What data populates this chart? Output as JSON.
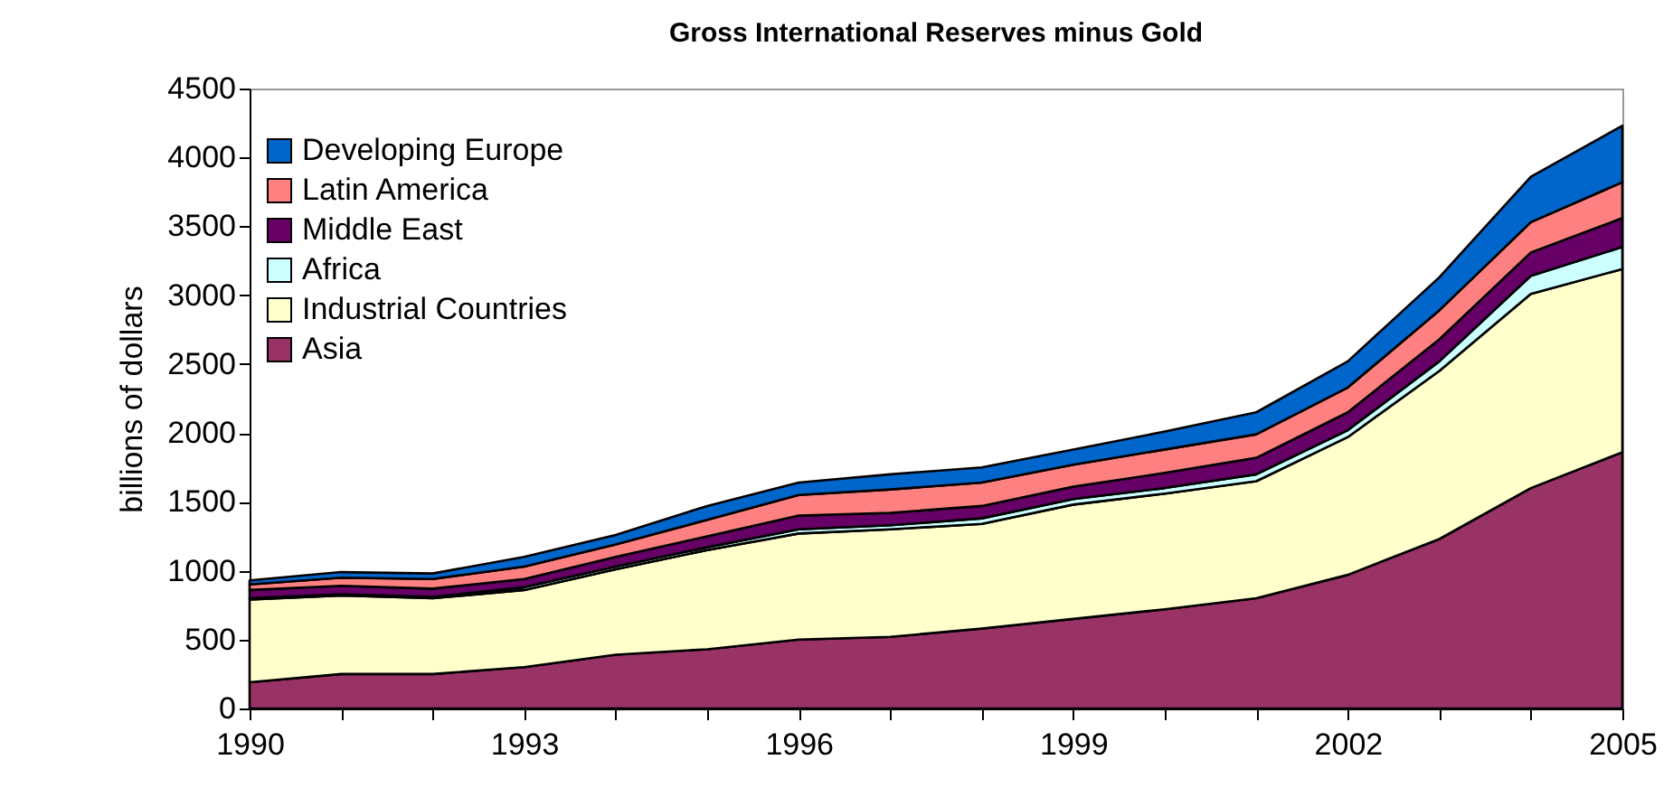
{
  "chart_data": {
    "type": "area",
    "title": "Gross International Reserves minus Gold",
    "ylabel": "billions of dollars",
    "stacked": true,
    "legend": "top left",
    "grid": false,
    "x": [
      1990,
      1991,
      1992,
      1993,
      1994,
      1995,
      1996,
      1997,
      1998,
      1999,
      2000,
      2001,
      2002,
      2003,
      2004,
      2005
    ],
    "xlim": [
      1990,
      2005
    ],
    "xticks": [
      1990,
      {
        "value": 1991,
        "label": null
      },
      {
        "value": 1992,
        "label": null
      },
      1993,
      {
        "value": 1994,
        "label": null
      },
      {
        "value": 1995,
        "label": null
      },
      1996,
      {
        "value": 1997,
        "label": null
      },
      {
        "value": 1998,
        "label": null
      },
      1999,
      {
        "value": 2000,
        "label": null
      },
      {
        "value": 2001,
        "label": null
      },
      2002,
      {
        "value": 2003,
        "label": null
      },
      {
        "value": 2004,
        "label": null
      },
      2005
    ],
    "ylim": [
      0,
      4500
    ],
    "yticks": [
      0,
      500,
      1000,
      1500,
      2000,
      2500,
      3000,
      3500,
      4000,
      4500
    ],
    "series": [
      {
        "name": "Asia",
        "color": "#993366",
        "values": [
          190,
          250,
          250,
          300,
          390,
          430,
          500,
          520,
          580,
          650,
          720,
          800,
          970,
          1230,
          1600,
          1860
        ]
      },
      {
        "name": "Industrial Countries",
        "color": "#ffffcc",
        "values": [
          600,
          570,
          550,
          560,
          620,
          720,
          770,
          780,
          760,
          830,
          840,
          850,
          1000,
          1220,
          1410,
          1330
        ]
      },
      {
        "name": "Africa",
        "color": "#ccffff",
        "values": [
          10,
          10,
          10,
          20,
          20,
          20,
          30,
          30,
          40,
          40,
          40,
          50,
          50,
          70,
          130,
          160
        ]
      },
      {
        "name": "Middle East",
        "color": "#660066",
        "values": [
          60,
          60,
          60,
          60,
          70,
          80,
          100,
          90,
          90,
          90,
          110,
          120,
          130,
          160,
          170,
          210
        ]
      },
      {
        "name": "Latin America",
        "color": "#ff8080",
        "values": [
          40,
          60,
          70,
          90,
          90,
          120,
          150,
          170,
          170,
          160,
          170,
          170,
          180,
          210,
          220,
          260
        ]
      },
      {
        "name": "Developing Europe",
        "color": "#0066cc",
        "values": [
          30,
          40,
          40,
          70,
          70,
          100,
          90,
          110,
          110,
          110,
          130,
          160,
          190,
          240,
          330,
          410
        ]
      }
    ]
  }
}
